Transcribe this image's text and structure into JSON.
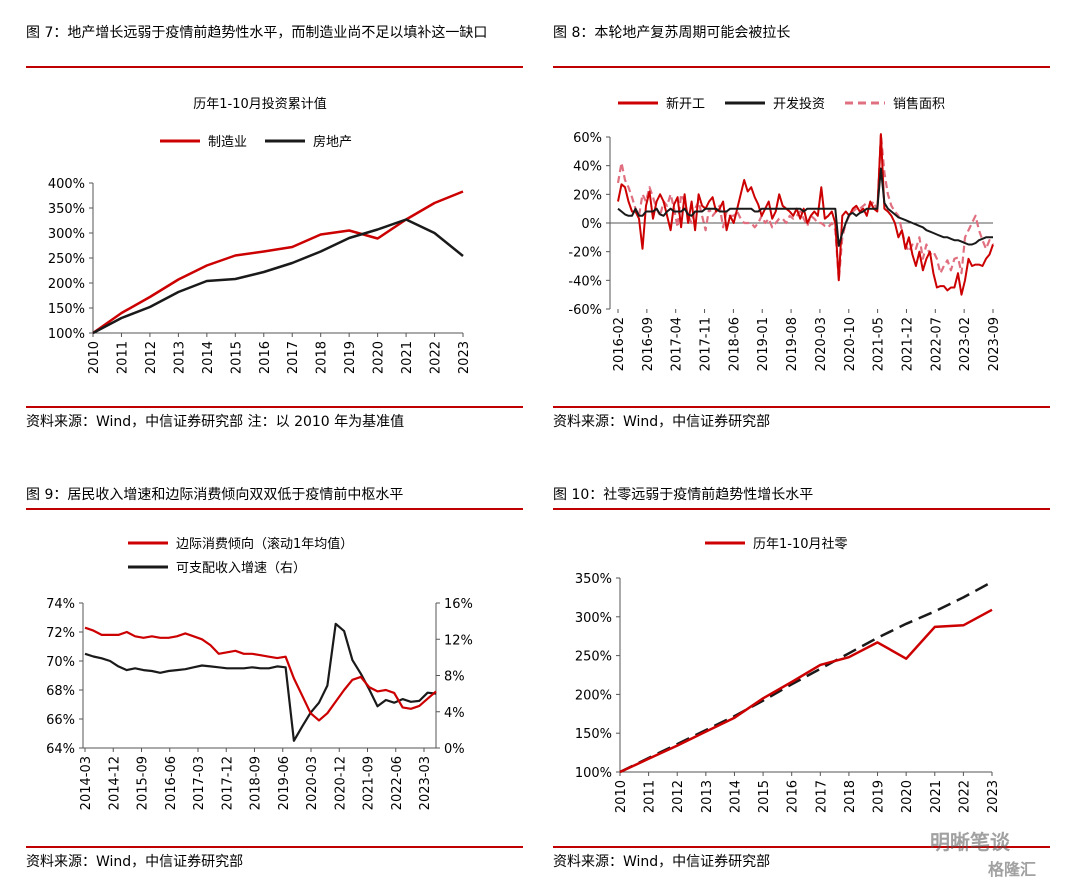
{
  "figures": [
    {
      "title": "图 7：地产增长远弱于疫情前趋势性水平，而制造业尚不足以填补这一缺口",
      "source": "资料来源：Wind，中信证券研究部  注：以 2010 年为基准值"
    },
    {
      "title": "图 8：本轮地产复苏周期可能会被拉长",
      "source": "资料来源：Wind，中信证券研究部"
    },
    {
      "title": "图 9：居民收入增速和边际消费倾向双双低于疫情前中枢水平",
      "source": "资料来源：Wind，中信证券研究部"
    },
    {
      "title": "图 10：社零远弱于疫情前趋势性增长水平",
      "source": "资料来源：Wind，中信证券研究部"
    }
  ],
  "watermark": {
    "text1": "明晰笔谈",
    "text2": "格隆汇"
  },
  "colors": {
    "red": "#cc0000",
    "black": "#1a1a1a",
    "pink": "#e07080",
    "rule": "#c00000"
  },
  "chart_data": [
    {
      "type": "line",
      "title": "历年1-10月投资累计值",
      "x": [
        "2010",
        "2011",
        "2012",
        "2013",
        "2014",
        "2015",
        "2016",
        "2017",
        "2018",
        "2019",
        "2020",
        "2021",
        "2022",
        "2023"
      ],
      "series": [
        {
          "name": "制造业",
          "values": [
            100,
            140,
            172,
            207,
            235,
            255,
            263,
            272,
            297,
            305,
            289,
            327,
            360,
            383
          ]
        },
        {
          "name": "房地产",
          "values": [
            100,
            130,
            152,
            182,
            204,
            208,
            222,
            240,
            263,
            290,
            307,
            327,
            300,
            254
          ]
        }
      ],
      "y_ticks": [
        "100%",
        "150%",
        "200%",
        "250%",
        "300%",
        "350%",
        "400%"
      ],
      "ylim": [
        100,
        400
      ],
      "legend": "top"
    },
    {
      "type": "line",
      "x_ticks": [
        "2016-02",
        "2016-09",
        "2017-04",
        "2017-11",
        "2018-06",
        "2019-01",
        "2019-08",
        "2020-03",
        "2020-10",
        "2021-05",
        "2021-12",
        "2022-07",
        "2023-02",
        "2023-09"
      ],
      "series": [
        {
          "name": "新开工",
          "values": [
            15,
            27,
            25,
            15,
            8,
            8,
            3,
            -18,
            12,
            22,
            3,
            15,
            20,
            15,
            5,
            -5,
            13,
            18,
            -3,
            20,
            0,
            15,
            -5,
            20,
            12,
            10,
            15,
            18,
            8,
            10,
            15,
            -5,
            5,
            0,
            10,
            20,
            30,
            22,
            25,
            18,
            13,
            5,
            10,
            15,
            3,
            8,
            20,
            12,
            10,
            8,
            5,
            10,
            3,
            10,
            0,
            5,
            8,
            5,
            25,
            3,
            5,
            8,
            0,
            -40,
            5,
            8,
            5,
            10,
            12,
            8,
            10,
            5,
            15,
            10,
            8,
            62,
            10,
            8,
            5,
            0,
            -10,
            -5,
            -18,
            -10,
            -22,
            -30,
            -20,
            -33,
            -25,
            -20,
            -35,
            -45,
            -44,
            -44,
            -47,
            -45,
            -45,
            -35,
            -50,
            -40,
            -25,
            -30,
            -29,
            -29,
            -30,
            -25,
            -22,
            -15
          ]
        },
        {
          "name": "开发投资",
          "values": [
            10,
            8,
            6,
            5,
            5,
            10,
            5,
            5,
            8,
            8,
            8,
            10,
            6,
            5,
            8,
            10,
            8,
            8,
            8,
            10,
            6,
            5,
            8,
            8,
            8,
            10,
            10,
            10,
            10,
            8,
            8,
            8,
            10,
            10,
            10,
            10,
            10,
            10,
            10,
            8,
            8,
            10,
            10,
            10,
            10,
            10,
            10,
            10,
            10,
            10,
            10,
            10,
            10,
            8,
            10,
            10,
            10,
            10,
            10,
            10,
            10,
            10,
            10,
            -16,
            -7,
            0,
            6,
            7,
            5,
            7,
            8,
            10,
            10,
            10,
            10,
            38,
            14,
            10,
            8,
            6,
            4,
            3,
            2,
            1,
            0,
            -1,
            -2,
            -3,
            -5,
            -6,
            -7,
            -8,
            -9,
            -10,
            -10,
            -11,
            -12,
            -12,
            -13,
            -14,
            -15,
            -15,
            -14,
            -12,
            -11,
            -10,
            -10,
            -10
          ]
        },
        {
          "name": "销售面积",
          "values": [
            28,
            42,
            30,
            25,
            18,
            10,
            5,
            20,
            15,
            25,
            18,
            10,
            5,
            15,
            12,
            20,
            10,
            -3,
            20,
            15,
            5,
            0,
            10,
            15,
            5,
            -5,
            10,
            5,
            8,
            12,
            -3,
            8,
            5,
            5,
            8,
            3,
            0,
            0,
            0,
            -3,
            0,
            5,
            0,
            3,
            -3,
            0,
            3,
            3,
            0,
            5,
            3,
            5,
            8,
            3,
            -2,
            5,
            3,
            0,
            0,
            -2,
            -3,
            0,
            -5,
            -40,
            -10,
            0,
            5,
            8,
            10,
            10,
            12,
            14,
            12,
            15,
            8,
            62,
            35,
            20,
            12,
            8,
            5,
            -5,
            -15,
            -20,
            -15,
            -18,
            -10,
            -25,
            -15,
            -22,
            -20,
            -25,
            -35,
            -30,
            -26,
            -33,
            -25,
            -24,
            -35,
            -10,
            -5,
            0,
            5,
            -5,
            -12,
            -18,
            -12,
            -15
          ]
        }
      ],
      "y_ticks": [
        "-60%",
        "-40%",
        "-20%",
        "0%",
        "20%",
        "40%",
        "60%"
      ],
      "ylim": [
        -60,
        60
      ],
      "legend": "top"
    },
    {
      "type": "line",
      "x_ticks": [
        "2014-03",
        "2014-12",
        "2015-09",
        "2016-06",
        "2017-03",
        "2017-12",
        "2018-09",
        "2019-06",
        "2020-03",
        "2020-12",
        "2021-09",
        "2022-06",
        "2023-03"
      ],
      "series": [
        {
          "name": "边际消费倾向（滚动1年均值）",
          "axis": "left",
          "values": [
            72.3,
            72.1,
            71.8,
            71.8,
            71.8,
            72.0,
            71.7,
            71.6,
            71.7,
            71.6,
            71.6,
            71.7,
            71.9,
            71.7,
            71.5,
            71.1,
            70.5,
            70.6,
            70.7,
            70.5,
            70.5,
            70.4,
            70.3,
            70.2,
            70.3,
            68.8,
            67.6,
            66.4,
            65.9,
            66.4,
            67.2,
            68.0,
            68.7,
            68.9,
            68.2,
            67.9,
            68.0,
            67.8,
            66.8,
            66.7,
            66.9,
            67.4,
            67.9
          ]
        },
        {
          "name": "可支配收入增速（右）",
          "axis": "right",
          "values": [
            10.4,
            10.1,
            9.9,
            9.6,
            9.0,
            8.6,
            8.8,
            8.6,
            8.5,
            8.3,
            8.5,
            8.6,
            8.7,
            8.9,
            9.1,
            9.0,
            8.9,
            8.8,
            8.8,
            8.8,
            8.9,
            8.8,
            8.8,
            9.0,
            8.9,
            0.8,
            2.4,
            3.9,
            5.0,
            6.9,
            13.7,
            12.9,
            9.7,
            8.2,
            6.5,
            4.6,
            5.3,
            5.0,
            5.4,
            5.1,
            5.2,
            6.1,
            6.0
          ]
        }
      ],
      "y_ticks_left": [
        "64%",
        "66%",
        "68%",
        "70%",
        "72%",
        "74%"
      ],
      "ylim_left": [
        64,
        74
      ],
      "y_ticks_right": [
        "0%",
        "4%",
        "8%",
        "12%",
        "16%"
      ],
      "ylim_right": [
        0,
        16
      ],
      "legend": "top-left"
    },
    {
      "type": "line",
      "legend_label": "历年1-10月社零",
      "x": [
        "2010",
        "2011",
        "2012",
        "2013",
        "2014",
        "2015",
        "2016",
        "2017",
        "2018",
        "2019",
        "2020",
        "2021",
        "2022",
        "2023"
      ],
      "series": [
        {
          "name": "历年1-10月社零",
          "values": [
            100,
            117,
            134,
            152,
            170,
            195,
            216,
            238,
            248,
            267,
            246,
            287,
            289,
            309
          ]
        },
        {
          "name": "",
          "style": "dashed",
          "values": [
            100,
            118,
            136,
            154,
            172,
            192,
            213,
            233,
            253,
            273,
            291,
            307,
            325,
            345
          ]
        }
      ],
      "y_ticks": [
        "100%",
        "150%",
        "200%",
        "250%",
        "300%",
        "350%"
      ],
      "ylim": [
        100,
        350
      ],
      "legend": "top"
    }
  ]
}
